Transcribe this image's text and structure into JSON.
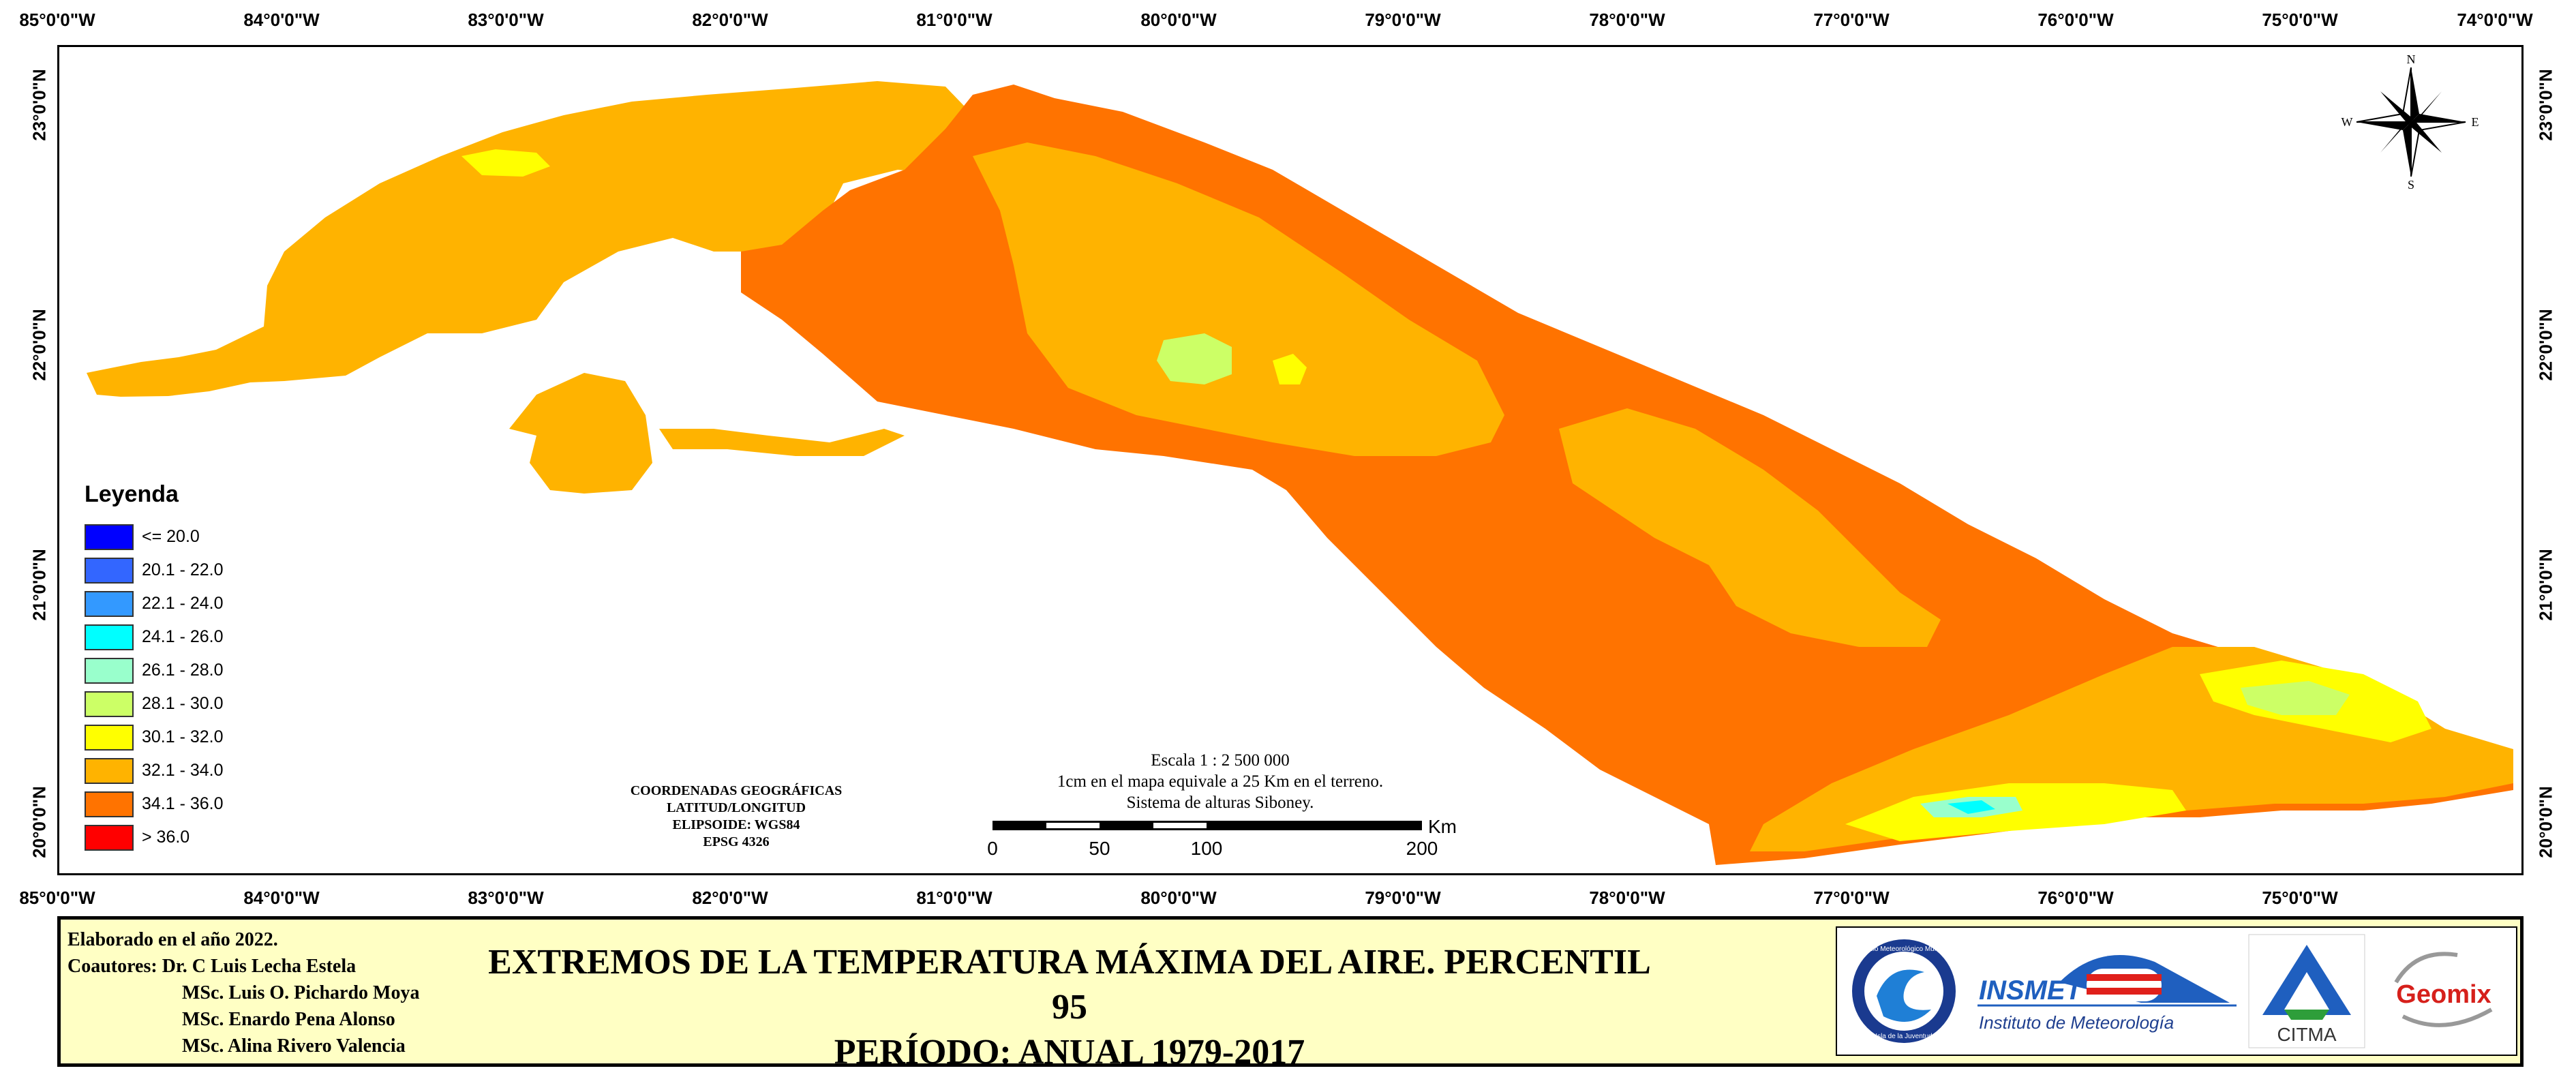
{
  "longitude_ticks_top": [
    "85°0'0\"W",
    "84°0'0\"W",
    "83°0'0\"W",
    "82°0'0\"W",
    "81°0'0\"W",
    "80°0'0\"W",
    "79°0'0\"W",
    "78°0'0\"W",
    "77°0'0\"W",
    "76°0'0\"W",
    "75°0'0\"W",
    "74°0'0\"W"
  ],
  "longitude_ticks_bottom": [
    "85°0'0\"W",
    "84°0'0\"W",
    "83°0'0\"W",
    "82°0'0\"W",
    "81°0'0\"W",
    "80°0'0\"W",
    "79°0'0\"W",
    "78°0'0\"W",
    "77°0'0\"W",
    "76°0'0\"W",
    "75°0'0\"W"
  ],
  "latitude_ticks": [
    "23°0'0\"N",
    "22°0'0\"N",
    "21°0'0\"N",
    "20°0'0\"N"
  ],
  "north_arrow": {
    "n": "N",
    "s": "S",
    "e": "E",
    "w": "W"
  },
  "legend": {
    "title": "Leyenda",
    "items": [
      {
        "label": "<= 20.0",
        "color": "#0000ff"
      },
      {
        "label": "20.1 - 22.0",
        "color": "#3366ff"
      },
      {
        "label": "22.1 - 24.0",
        "color": "#3399ff"
      },
      {
        "label": "24.1 - 26.0",
        "color": "#00ffff"
      },
      {
        "label": "26.1 - 28.0",
        "color": "#99ffcc"
      },
      {
        "label": "28.1 - 30.0",
        "color": "#ccff66"
      },
      {
        "label": "30.1 - 32.0",
        "color": "#ffff00"
      },
      {
        "label": "32.1 - 34.0",
        "color": "#ffb300"
      },
      {
        "label": "34.1 - 36.0",
        "color": "#ff7300"
      },
      {
        "label": "> 36.0",
        "color": "#ff0000"
      }
    ]
  },
  "coordinates_note": [
    "COORDENADAS GEOGRÁFICAS",
    "LATITUD/LONGITUD",
    "ELIPSOIDE: WGS84",
    "EPSG 4326"
  ],
  "scale": {
    "lines": [
      "Escala 1 : 2 500 000",
      "1cm en el mapa equivale a 25 Km en el terreno.",
      "Sistema de alturas Siboney."
    ],
    "labels": [
      "0",
      "50",
      "100",
      "200"
    ],
    "unit": "Km"
  },
  "credits": [
    "Elaborado en el año 2022.",
    "Coautores: Dr. C Luis Lecha Estela",
    "MSc. Luis O. Pichardo Moya",
    "MSc. Enardo Pena Alonso",
    "MSc. Alina Rivero Valencia"
  ],
  "footer_title": [
    "EXTREMOS DE LA TEMPERATURA MÁXIMA DEL AIRE. PERCENTIL 95",
    "PERÍODO: ANUAL 1979-2017"
  ],
  "logos": {
    "insmet_name": "INSMET",
    "insmet_sub": "Instituto de Meteorología",
    "citma": "CITMA",
    "geomix": "Geomix",
    "smp_top": "Servicio Meteorológico Municipal",
    "smp_bottom": "Isla de la Juventud"
  },
  "colors": {
    "orange_3436": "#ff7300",
    "amber_3234": "#ffb300",
    "yellow_3032": "#ffff00",
    "lime_2830": "#ccff66",
    "mint_2628": "#99ffcc",
    "cyan_2426": "#00ffff",
    "footer_bg": "#ffffc4"
  }
}
